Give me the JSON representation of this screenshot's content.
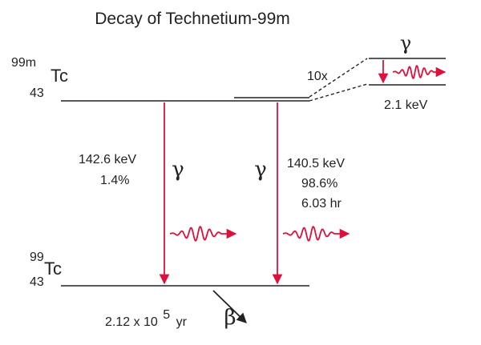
{
  "title": "Decay of Technetium-99m",
  "parent": {
    "mass": "99m",
    "symbol": "Tc",
    "atomic_number": "43"
  },
  "daughter": {
    "mass": "99",
    "symbol": "Tc",
    "atomic_number": "43",
    "half_life_prefix": "2.12 x 10",
    "half_life_exponent": "5",
    "half_life_unit": "yr",
    "decay_symbol": "β"
  },
  "transitions": [
    {
      "symbol": "γ",
      "energy": "142.6 keV",
      "intensity": "1.4%"
    },
    {
      "symbol": "γ",
      "energy": "140.5 keV",
      "intensity": "98.6%",
      "half_life": "6.03 hr"
    }
  ],
  "inset": {
    "magnification": "10x",
    "symbol": "γ",
    "energy": "2.1 keV"
  },
  "colors": {
    "line": "#222222",
    "gamma_arrow": "#e0103c",
    "wave": "#e0103c"
  }
}
